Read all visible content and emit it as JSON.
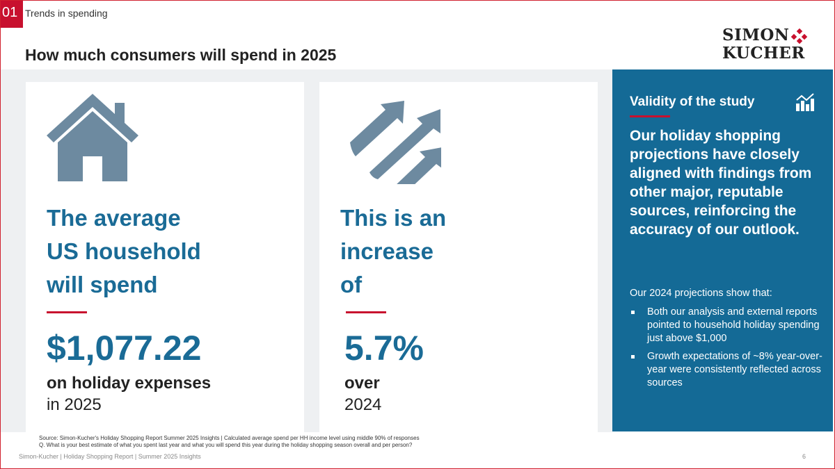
{
  "header": {
    "section_number": "01",
    "section_title": "Trends in spending",
    "title": "How much consumers will spend in 2025",
    "logo": "SIMON KUCHER"
  },
  "colors": {
    "accent": "#c8102e",
    "brand_blue": "#146a96",
    "heading_blue": "#1a6b96",
    "icon_gray": "#6d8aa0"
  },
  "card1": {
    "icon": "house-icon",
    "lines": [
      "The average",
      "US household",
      "will spend"
    ],
    "value": "$1,077.22",
    "sub_bold": "on holiday expenses",
    "sub": "in 2025"
  },
  "card2": {
    "icon": "arrows-up-right-icon",
    "lines": [
      "This is an",
      "increase",
      "of"
    ],
    "value": "5.7%",
    "sub_bold": "over",
    "sub": "2024"
  },
  "panel": {
    "heading": "Validity of the study",
    "icon": "bar-chart-trend-icon",
    "lead": "Our holiday shopping projections have closely aligned with findings from other major, reputable sources, reinforcing the accuracy of our outlook.",
    "intro": "Our 2024 projections show that:",
    "bullets": [
      "Both our analysis and external reports pointed to household holiday spending just above $1,000",
      "Growth expectations of ~8% year-over-year were consistently reflected across sources"
    ]
  },
  "footer": {
    "source": "Source: Simon-Kucher's Holiday Shopping Report Summer 2025 Insights  | Calculated average spend per HH income level using middle 90% of responses",
    "question": "Q. What is your best estimate of what you spent last year and what you will spend this year during the holiday shopping season overall and per person?",
    "report": "Simon-Kucher | Holiday Shopping Report | Summer 2025 Insights",
    "page": "6"
  }
}
